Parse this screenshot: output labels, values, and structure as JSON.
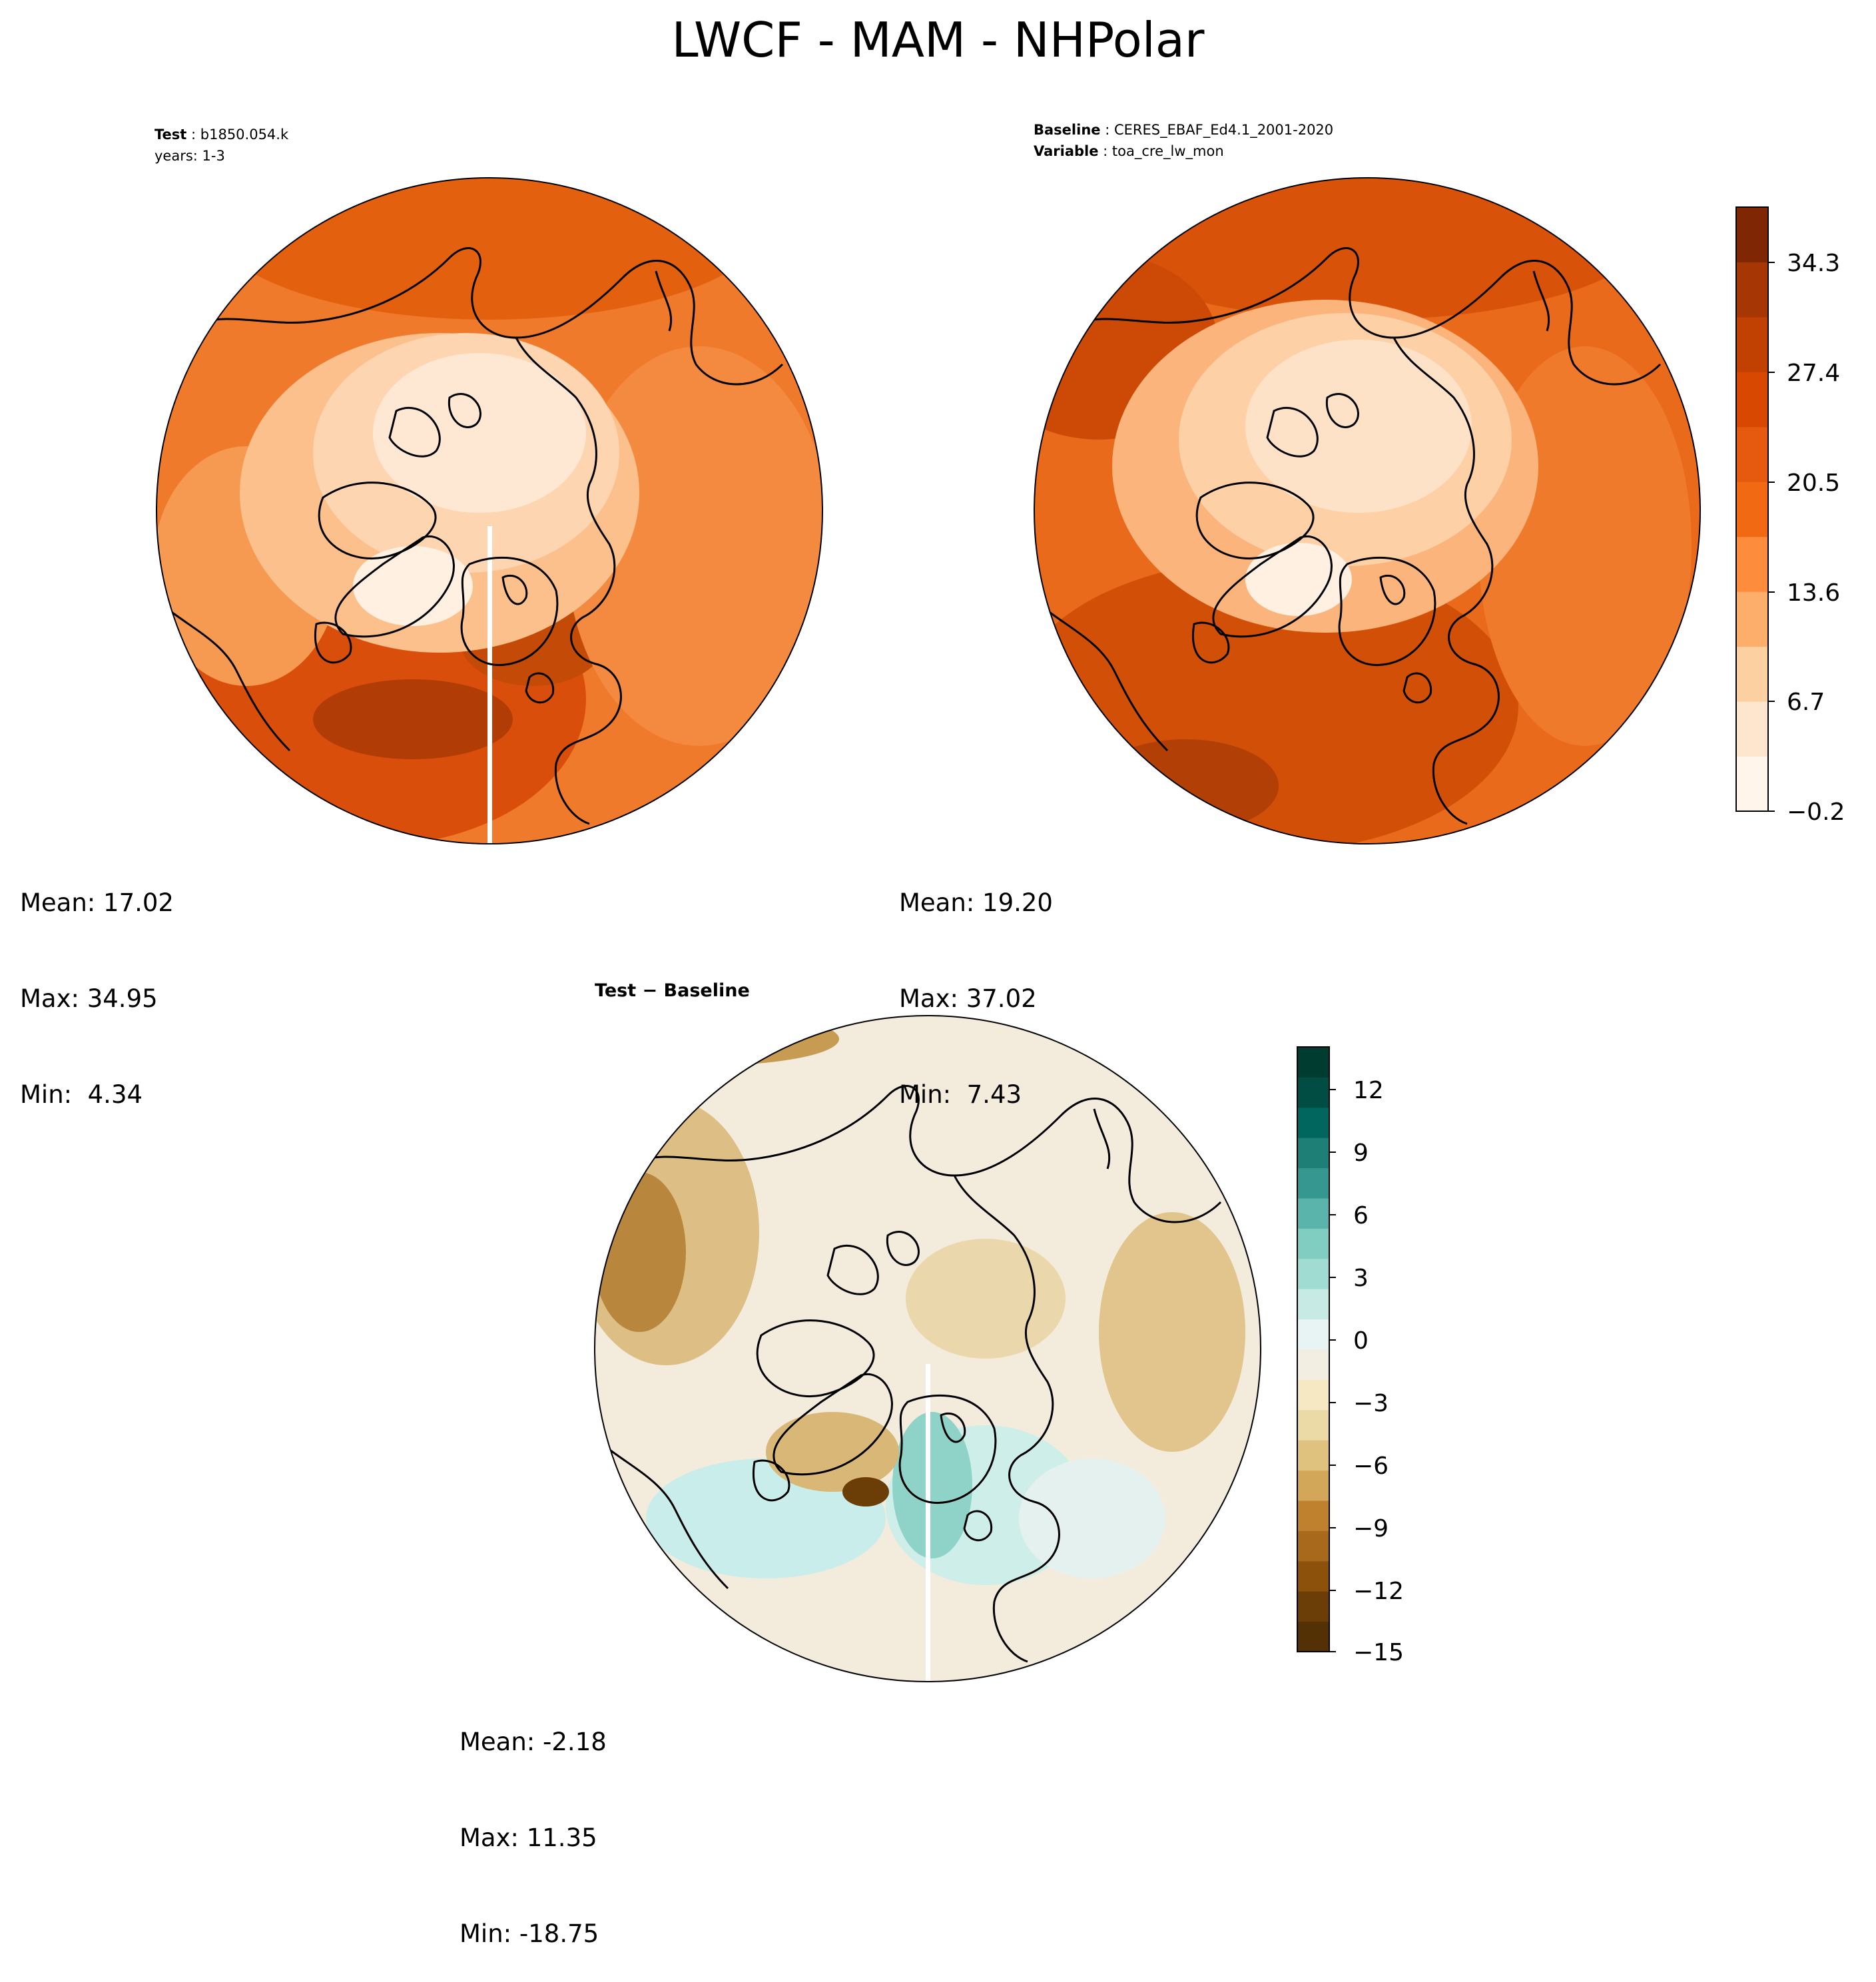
{
  "title": "LWCF - MAM - NHPolar",
  "panels": {
    "test": {
      "label": "Test",
      "value": "b1850.054.k",
      "years": "years: 1-3",
      "stats": {
        "mean": "Mean: 17.02",
        "max": "Max: 34.95",
        "min": "Min:  4.34"
      }
    },
    "baseline": {
      "label": "Baseline",
      "value": "CERES_EBAF_Ed4.1_2001-2020",
      "variable_label": "Variable",
      "variable_value": "toa_cre_lw_mon",
      "stats": {
        "mean": "Mean: 19.20",
        "max": "Max: 37.02",
        "min": "Min:  7.43"
      }
    },
    "diff": {
      "label": "Test − Baseline",
      "stats": {
        "mean": "Mean: -2.18",
        "max": "Max: 11.35",
        "min": "Min: -18.75"
      }
    }
  },
  "colorbars": {
    "main": {
      "ticks": [
        "34.3",
        "27.4",
        "20.5",
        "13.6",
        "6.7",
        "−0.2"
      ],
      "colors": [
        "#fff5eb",
        "#fee6ce",
        "#fdd0a2",
        "#fdae6b",
        "#fd8d3c",
        "#f16913",
        "#e55a0e",
        "#d94801",
        "#c04101",
        "#a63603",
        "#7f2704"
      ]
    },
    "diff": {
      "ticks": [
        "12",
        "9",
        "6",
        "3",
        "0",
        "−3",
        "−6",
        "−9",
        "−12",
        "−15"
      ],
      "colors": [
        "#543005",
        "#6b3d07",
        "#8c510a",
        "#a8691c",
        "#bf812d",
        "#d2a75a",
        "#dfc27d",
        "#ebd9a6",
        "#f6e8c3",
        "#f3eee2",
        "#e8f4f3",
        "#c7eae5",
        "#a1dcd2",
        "#80cdc1",
        "#5ab4ac",
        "#35978f",
        "#1e7f76",
        "#01665e",
        "#014d44",
        "#003c30"
      ]
    }
  }
}
